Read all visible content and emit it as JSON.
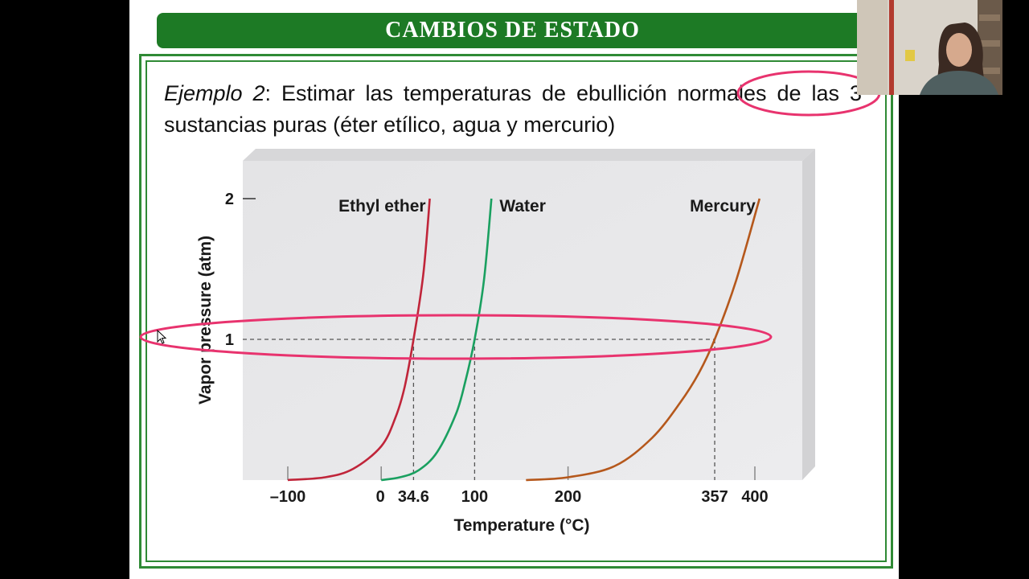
{
  "slide": {
    "title": "CAMBIOS DE ESTADO",
    "example_label": "Ejemplo 2",
    "example_text": ": Estimar las temperaturas de ebullición normales de las 3 sustancias puras (éter etílico, agua y mercurio)"
  },
  "colors": {
    "title_bar": "#1d7a25",
    "frame": "#2f8a35",
    "annotation": "#e8336e",
    "ether": "#c0253a",
    "water": "#1aa060",
    "mercury": "#b5581c"
  },
  "chart_data": {
    "type": "line",
    "xlabel": "Temperature (°C)",
    "ylabel": "Vapor pressure (atm)",
    "xlim": [
      -120,
      420
    ],
    "ylim": [
      0,
      2.1
    ],
    "xticks": [
      {
        "value": -100,
        "label": "–100"
      },
      {
        "value": 0,
        "label": "0"
      },
      {
        "value": 34.6,
        "label": "34.6"
      },
      {
        "value": 100,
        "label": "100"
      },
      {
        "value": 200,
        "label": "200"
      },
      {
        "value": 357,
        "label": "357"
      },
      {
        "value": 400,
        "label": "400"
      }
    ],
    "yticks": [
      {
        "value": 1,
        "label": "1"
      },
      {
        "value": 2,
        "label": "2"
      }
    ],
    "reference_line": {
      "y": 1
    },
    "series": [
      {
        "name": "Ethyl ether",
        "color": "#c0253a",
        "boiling_point": 34.6,
        "points": [
          [
            -100,
            0
          ],
          [
            -60,
            0.02
          ],
          [
            -30,
            0.08
          ],
          [
            0,
            0.24
          ],
          [
            15,
            0.44
          ],
          [
            25,
            0.66
          ],
          [
            34.6,
            1.0
          ],
          [
            45,
            1.46
          ],
          [
            52,
            2.0
          ]
        ]
      },
      {
        "name": "Water",
        "color": "#1aa060",
        "boiling_point": 100,
        "points": [
          [
            0,
            0
          ],
          [
            20,
            0.02
          ],
          [
            40,
            0.07
          ],
          [
            60,
            0.2
          ],
          [
            80,
            0.47
          ],
          [
            90,
            0.7
          ],
          [
            100,
            1.0
          ],
          [
            110,
            1.42
          ],
          [
            118,
            2.0
          ]
        ]
      },
      {
        "name": "Mercury",
        "color": "#b5581c",
        "boiling_point": 357,
        "points": [
          [
            155,
            0
          ],
          [
            200,
            0.02
          ],
          [
            250,
            0.1
          ],
          [
            290,
            0.3
          ],
          [
            320,
            0.55
          ],
          [
            340,
            0.76
          ],
          [
            357,
            1.0
          ],
          [
            380,
            1.42
          ],
          [
            405,
            2.0
          ]
        ]
      }
    ]
  }
}
